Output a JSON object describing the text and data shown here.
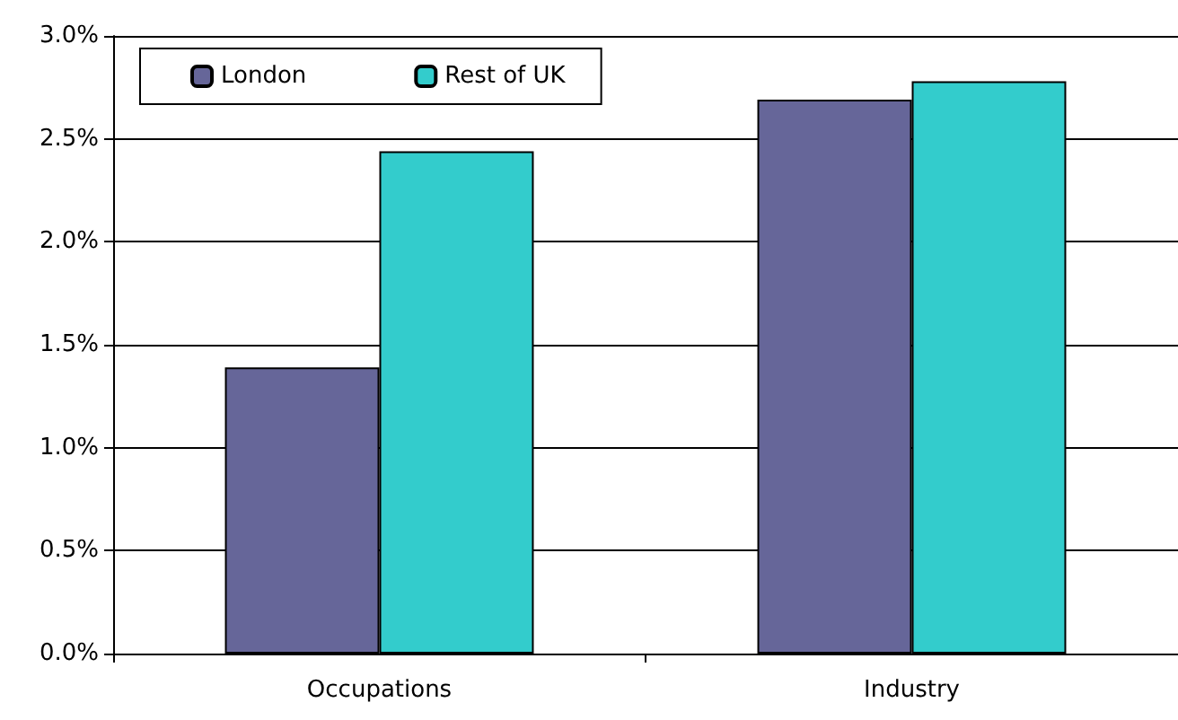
{
  "chart_data": {
    "type": "bar",
    "categories": [
      "Occupations",
      "Industry"
    ],
    "series": [
      {
        "name": "London",
        "color": "#666699",
        "values": [
          1.39,
          2.69
        ]
      },
      {
        "name": "Rest of UK",
        "color": "#33cccc",
        "values": [
          2.44,
          2.78
        ]
      }
    ],
    "ylim": [
      0,
      3
    ],
    "yticks": [
      {
        "value": 0,
        "label": "0.0%"
      },
      {
        "value": 0.5,
        "label": "0.5%"
      },
      {
        "value": 1,
        "label": "1.0%"
      },
      {
        "value": 1.5,
        "label": "1.5%"
      },
      {
        "value": 2,
        "label": "2.0%"
      },
      {
        "value": 2.5,
        "label": "2.5%"
      },
      {
        "value": 3,
        "label": "3.0%"
      }
    ],
    "grid": "y",
    "legend": "top left"
  }
}
